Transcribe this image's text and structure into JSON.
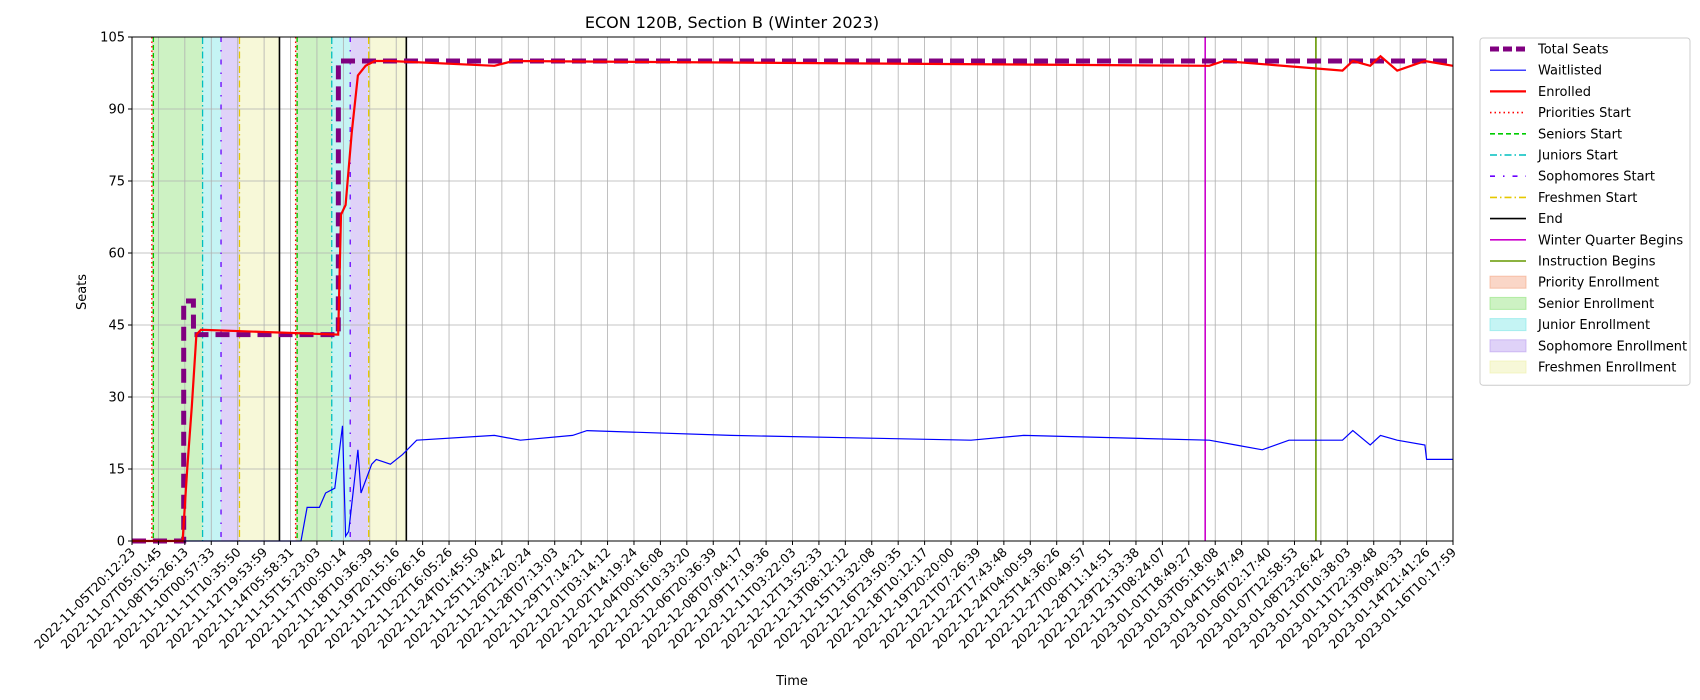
{
  "chart_data": {
    "type": "line",
    "title": "ECON 120B, Section B (Winter 2023)",
    "xlabel": "Time",
    "ylabel": "Seats",
    "ylim": [
      0,
      105
    ],
    "yticks": [
      0,
      15,
      30,
      45,
      60,
      75,
      90,
      105
    ],
    "grid": true,
    "legend_placement": "outside-right",
    "x_time_range": [
      "2022-11-05T20:12:23",
      "2023-01-16T10:17:59"
    ],
    "x_tick_labels": [
      "2022-11-05T20:12:23",
      "2022-11-07T05:01:45",
      "2022-11-08T15:26:13",
      "2022-11-10T00:57:33",
      "2022-11-11T10:35:50",
      "2022-11-12T19:53:59",
      "2022-11-14T05:58:31",
      "2022-11-15T15:23:03",
      "2022-11-17T00:50:14",
      "2022-11-18T10:36:39",
      "2022-11-19T20:15:16",
      "2022-11-21T06:26:16",
      "2022-11-22T16:05:26",
      "2022-11-24T01:45:50",
      "2022-11-25T11:34:42",
      "2022-11-26T21:20:24",
      "2022-11-28T07:13:03",
      "2022-11-29T17:14:21",
      "2022-12-01T03:14:12",
      "2022-12-02T14:19:24",
      "2022-12-04T00:16:08",
      "2022-12-05T10:33:20",
      "2022-12-06T20:36:39",
      "2022-12-08T07:04:17",
      "2022-12-09T17:19:36",
      "2022-12-11T03:22:03",
      "2022-12-12T13:52:33",
      "2022-12-13T08:12:12",
      "2022-12-15T13:32:08",
      "2022-12-16T23:50:35",
      "2022-12-18T10:12:17",
      "2022-12-19T20:20:00",
      "2022-12-21T07:26:39",
      "2022-12-22T17:43:48",
      "2022-12-24T04:00:59",
      "2022-12-25T14:36:26",
      "2022-12-27T00:49:57",
      "2022-12-28T11:14:51",
      "2022-12-29T21:33:38",
      "2022-12-31T08:24:07",
      "2023-01-01T18:49:27",
      "2023-01-03T05:18:08",
      "2023-01-04T15:47:49",
      "2023-01-06T02:17:40",
      "2023-01-07T12:58:53",
      "2023-01-08T23:26:42",
      "2023-01-10T10:38:03",
      "2023-01-11T22:39:48",
      "2023-01-13T09:40:33",
      "2023-01-14T21:41:26",
      "2023-01-16T10:17:59"
    ],
    "series": [
      {
        "name": "Total Seats",
        "color": "#800080",
        "style": "dashed-thick",
        "x": [
          "2022-11-05T20:12:23",
          "2022-11-08T15:26:13",
          "2022-11-08T15:30:00",
          "2022-11-09T04:00:00",
          "2022-11-09T04:10:00",
          "2022-11-17T00:30:00",
          "2022-11-17T00:40:00",
          "2022-11-19T20:15:16",
          "2023-01-16T10:17:59"
        ],
        "values": [
          0,
          0,
          50,
          50,
          43,
          43,
          100,
          100,
          100
        ]
      },
      {
        "name": "Waitlisted",
        "color": "#0000ff",
        "style": "solid-thin",
        "x": [
          "2022-11-05T20:12:23",
          "2022-11-15T00:00:00",
          "2022-11-15T08:00:00",
          "2022-11-16T00:00:00",
          "2022-11-16T08:00:00",
          "2022-11-16T20:00:00",
          "2022-11-17T06:00:00",
          "2022-11-17T10:00:00",
          "2022-11-17T14:00:00",
          "2022-11-18T02:00:00",
          "2022-11-18T06:00:00",
          "2022-11-18T20:00:00",
          "2022-11-19T02:00:00",
          "2022-11-19T20:15:16",
          "2022-11-20T12:00:00",
          "2022-11-21T06:26:16",
          "2022-11-25T11:34:42",
          "2022-11-26T21:20:24",
          "2022-11-29T17:14:21",
          "2022-11-30T12:00:00",
          "2022-12-08T07:04:17",
          "2022-12-21T07:26:39",
          "2022-12-24T04:00:59",
          "2023-01-03T05:18:08",
          "2023-01-04T15:47:49",
          "2023-01-06T02:17:40",
          "2023-01-07T12:58:53",
          "2023-01-10T10:38:03",
          "2023-01-11T00:00:00",
          "2023-01-11T22:39:48",
          "2023-01-12T12:00:00",
          "2023-01-13T09:40:33",
          "2023-01-14T21:41:26",
          "2023-01-15T00:00:00",
          "2023-01-16T10:17:59"
        ],
        "values": [
          0,
          0,
          7,
          7,
          10,
          11,
          24,
          1,
          2,
          19,
          10,
          16,
          17,
          16,
          18,
          21,
          22,
          21,
          22,
          23,
          22,
          21,
          22,
          21,
          20,
          19,
          21,
          21,
          23,
          20,
          22,
          21,
          20,
          17,
          17
        ]
      },
      {
        "name": "Enrolled",
        "color": "#ff0000",
        "style": "solid-thick",
        "x": [
          "2022-11-05T20:12:23",
          "2022-11-08T14:00:00",
          "2022-11-08T20:00:00",
          "2022-11-09T02:00:00",
          "2022-11-09T08:00:00",
          "2022-11-09T14:00:00",
          "2022-11-17T00:20:00",
          "2022-11-17T04:00:00",
          "2022-11-17T10:00:00",
          "2022-11-17T18:00:00",
          "2022-11-18T02:00:00",
          "2022-11-18T12:00:00",
          "2022-11-19T00:00:00",
          "2022-11-19T20:15:16",
          "2022-11-25T11:34:42",
          "2022-11-26T12:00:00",
          "2023-01-03T05:18:08",
          "2023-01-04T00:00:00",
          "2023-01-10T10:38:03",
          "2023-01-11T00:00:00",
          "2023-01-11T22:39:48",
          "2023-01-12T12:00:00",
          "2023-01-13T09:40:33",
          "2023-01-14T21:41:26",
          "2023-01-16T10:17:59"
        ],
        "values": [
          0,
          0,
          15,
          28,
          43,
          44,
          43,
          68,
          70,
          85,
          97,
          99,
          100,
          100,
          99,
          100,
          99,
          100,
          98,
          100,
          99,
          101,
          98,
          100,
          99
        ]
      }
    ],
    "vertical_markers": [
      {
        "name": "Priorities Start",
        "color": "#ff0000",
        "style": "dotted",
        "x": [
          "2022-11-06T22:00:00",
          "2022-11-14T17:00:00"
        ]
      },
      {
        "name": "Seniors Start",
        "color": "#00cc00",
        "style": "dashed",
        "x": [
          "2022-11-07T00:00:00",
          "2022-11-14T19:00:00"
        ]
      },
      {
        "name": "Juniors Start",
        "color": "#00bfbf",
        "style": "dashdot",
        "x": [
          "2022-11-09T16:00:00",
          "2022-11-16T16:00:00"
        ]
      },
      {
        "name": "Sophomores Start",
        "color": "#6a00ff",
        "style": "dash-dot-sparse",
        "x": [
          "2022-11-10T16:00:00",
          "2022-11-17T16:00:00"
        ]
      },
      {
        "name": "Freshmen Start",
        "color": "#e6c800",
        "style": "dashdot",
        "x": [
          "2022-11-11T16:00:00",
          "2022-11-18T16:00:00"
        ]
      },
      {
        "name": "End",
        "color": "#000000",
        "style": "solid",
        "x": [
          "2022-11-13T20:00:00",
          "2022-11-20T17:00:00"
        ]
      },
      {
        "name": "Winter Quarter Begins",
        "color": "#cc00cc",
        "style": "solid",
        "x": [
          "2023-01-03T00:00:00"
        ]
      },
      {
        "name": "Instruction Begins",
        "color": "#669900",
        "style": "solid",
        "x": [
          "2023-01-09T00:00:00"
        ]
      }
    ],
    "shaded_regions": [
      {
        "name": "Priority Enrollment",
        "color": "#f4a582",
        "ranges": [
          [
            "2022-11-06T22:00:00",
            "2022-11-07T00:00:00"
          ],
          [
            "2022-11-14T17:00:00",
            "2022-11-14T19:00:00"
          ]
        ]
      },
      {
        "name": "Senior Enrollment",
        "color": "#90e27a",
        "ranges": [
          [
            "2022-11-07T00:00:00",
            "2022-11-09T16:00:00"
          ],
          [
            "2022-11-14T19:00:00",
            "2022-11-16T16:00:00"
          ]
        ]
      },
      {
        "name": "Junior Enrollment",
        "color": "#7fe6e6",
        "ranges": [
          [
            "2022-11-09T16:00:00",
            "2022-11-10T16:00:00"
          ],
          [
            "2022-11-16T16:00:00",
            "2022-11-17T16:00:00"
          ]
        ]
      },
      {
        "name": "Sophomore Enrollment",
        "color": "#b99cf0",
        "ranges": [
          [
            "2022-11-10T16:00:00",
            "2022-11-11T16:00:00"
          ],
          [
            "2022-11-17T16:00:00",
            "2022-11-18T16:00:00"
          ]
        ]
      },
      {
        "name": "Freshmen Enrollment",
        "color": "#eef0a8",
        "ranges": [
          [
            "2022-11-11T16:00:00",
            "2022-11-13T20:00:00"
          ],
          [
            "2022-11-18T16:00:00",
            "2022-11-20T17:00:00"
          ]
        ]
      }
    ]
  }
}
